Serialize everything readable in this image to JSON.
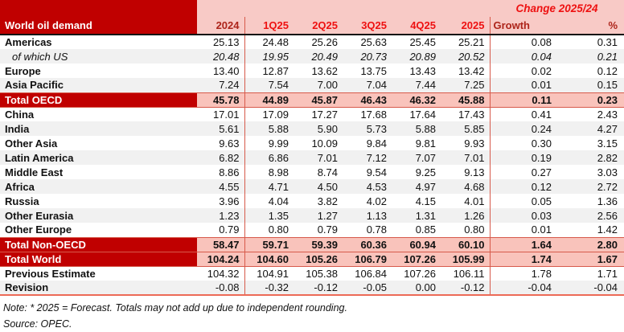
{
  "chart_data": {
    "type": "table",
    "title": "World oil demand",
    "change_header": "Change 2025/24",
    "columns": [
      "2024",
      "1Q25",
      "2Q25",
      "3Q25",
      "4Q25",
      "2025"
    ],
    "growth_label": "Growth",
    "percent_label": "%",
    "rows": [
      {
        "label": "Americas",
        "type": "region",
        "shade": "white",
        "values": [
          "25.13",
          "24.48",
          "25.26",
          "25.63",
          "25.45",
          "25.21",
          "0.08",
          "0.31"
        ]
      },
      {
        "label": "of which US",
        "type": "subitem",
        "shade": "gray",
        "values": [
          "20.48",
          "19.95",
          "20.49",
          "20.73",
          "20.89",
          "20.52",
          "0.04",
          "0.21"
        ]
      },
      {
        "label": "Europe",
        "type": "region",
        "shade": "white",
        "values": [
          "13.40",
          "12.87",
          "13.62",
          "13.75",
          "13.43",
          "13.42",
          "0.02",
          "0.12"
        ]
      },
      {
        "label": "Asia Pacific",
        "type": "region",
        "shade": "gray",
        "values": [
          "7.24",
          "7.54",
          "7.00",
          "7.04",
          "7.44",
          "7.25",
          "0.01",
          "0.15"
        ]
      },
      {
        "label": "Total OECD",
        "type": "total",
        "shade": "pink",
        "values": [
          "45.78",
          "44.89",
          "45.87",
          "46.43",
          "46.32",
          "45.88",
          "0.11",
          "0.23"
        ]
      },
      {
        "label": "China",
        "type": "region",
        "shade": "white",
        "values": [
          "17.01",
          "17.09",
          "17.27",
          "17.68",
          "17.64",
          "17.43",
          "0.41",
          "2.43"
        ]
      },
      {
        "label": "India",
        "type": "region",
        "shade": "gray",
        "values": [
          "5.61",
          "5.88",
          "5.90",
          "5.73",
          "5.88",
          "5.85",
          "0.24",
          "4.27"
        ]
      },
      {
        "label": "Other Asia",
        "type": "region",
        "shade": "white",
        "values": [
          "9.63",
          "9.99",
          "10.09",
          "9.84",
          "9.81",
          "9.93",
          "0.30",
          "3.15"
        ]
      },
      {
        "label": "Latin America",
        "type": "region",
        "shade": "gray",
        "values": [
          "6.82",
          "6.86",
          "7.01",
          "7.12",
          "7.07",
          "7.01",
          "0.19",
          "2.82"
        ]
      },
      {
        "label": "Middle East",
        "type": "region",
        "shade": "white",
        "values": [
          "8.86",
          "8.98",
          "8.74",
          "9.54",
          "9.25",
          "9.13",
          "0.27",
          "3.03"
        ]
      },
      {
        "label": "Africa",
        "type": "region",
        "shade": "gray",
        "values": [
          "4.55",
          "4.71",
          "4.50",
          "4.53",
          "4.97",
          "4.68",
          "0.12",
          "2.72"
        ]
      },
      {
        "label": "Russia",
        "type": "region",
        "shade": "white",
        "values": [
          "3.96",
          "4.04",
          "3.82",
          "4.02",
          "4.15",
          "4.01",
          "0.05",
          "1.36"
        ]
      },
      {
        "label": "Other Eurasia",
        "type": "region",
        "shade": "gray",
        "values": [
          "1.23",
          "1.35",
          "1.27",
          "1.13",
          "1.31",
          "1.26",
          "0.03",
          "2.56"
        ]
      },
      {
        "label": "Other Europe",
        "type": "region",
        "shade": "white",
        "values": [
          "0.79",
          "0.80",
          "0.79",
          "0.78",
          "0.85",
          "0.80",
          "0.01",
          "1.42"
        ]
      },
      {
        "label": "Total Non-OECD",
        "type": "total",
        "shade": "pink",
        "values": [
          "58.47",
          "59.71",
          "59.39",
          "60.36",
          "60.94",
          "60.10",
          "1.64",
          "2.80"
        ]
      },
      {
        "label": "Total World",
        "type": "total",
        "shade": "pink",
        "values": [
          "104.24",
          "104.60",
          "105.26",
          "106.79",
          "107.26",
          "105.99",
          "1.74",
          "1.67"
        ]
      },
      {
        "label": "Previous Estimate",
        "type": "estimate",
        "shade": "white",
        "values": [
          "104.32",
          "104.91",
          "105.38",
          "106.84",
          "107.26",
          "106.11",
          "1.78",
          "1.71"
        ]
      },
      {
        "label": "Revision",
        "type": "estimate",
        "shade": "gray",
        "values": [
          "-0.08",
          "-0.32",
          "-0.12",
          "-0.05",
          "0.00",
          "-0.12",
          "-0.04",
          "-0.04"
        ]
      }
    ],
    "note": "Note: * 2025 = Forecast. Totals may not add up due to independent rounding.",
    "source": "Source: OPEC."
  },
  "colors": {
    "dark_red": "#C00000",
    "header_pink": "#F8CAC6",
    "total_pink": "#F9C3BB",
    "row_gray": "#F1F1F1",
    "bright_red": "#EE1111",
    "dark_red_text": "#AD241A",
    "divider_red": "#D75A4B",
    "bottom_border_red": "#EC6A57"
  }
}
